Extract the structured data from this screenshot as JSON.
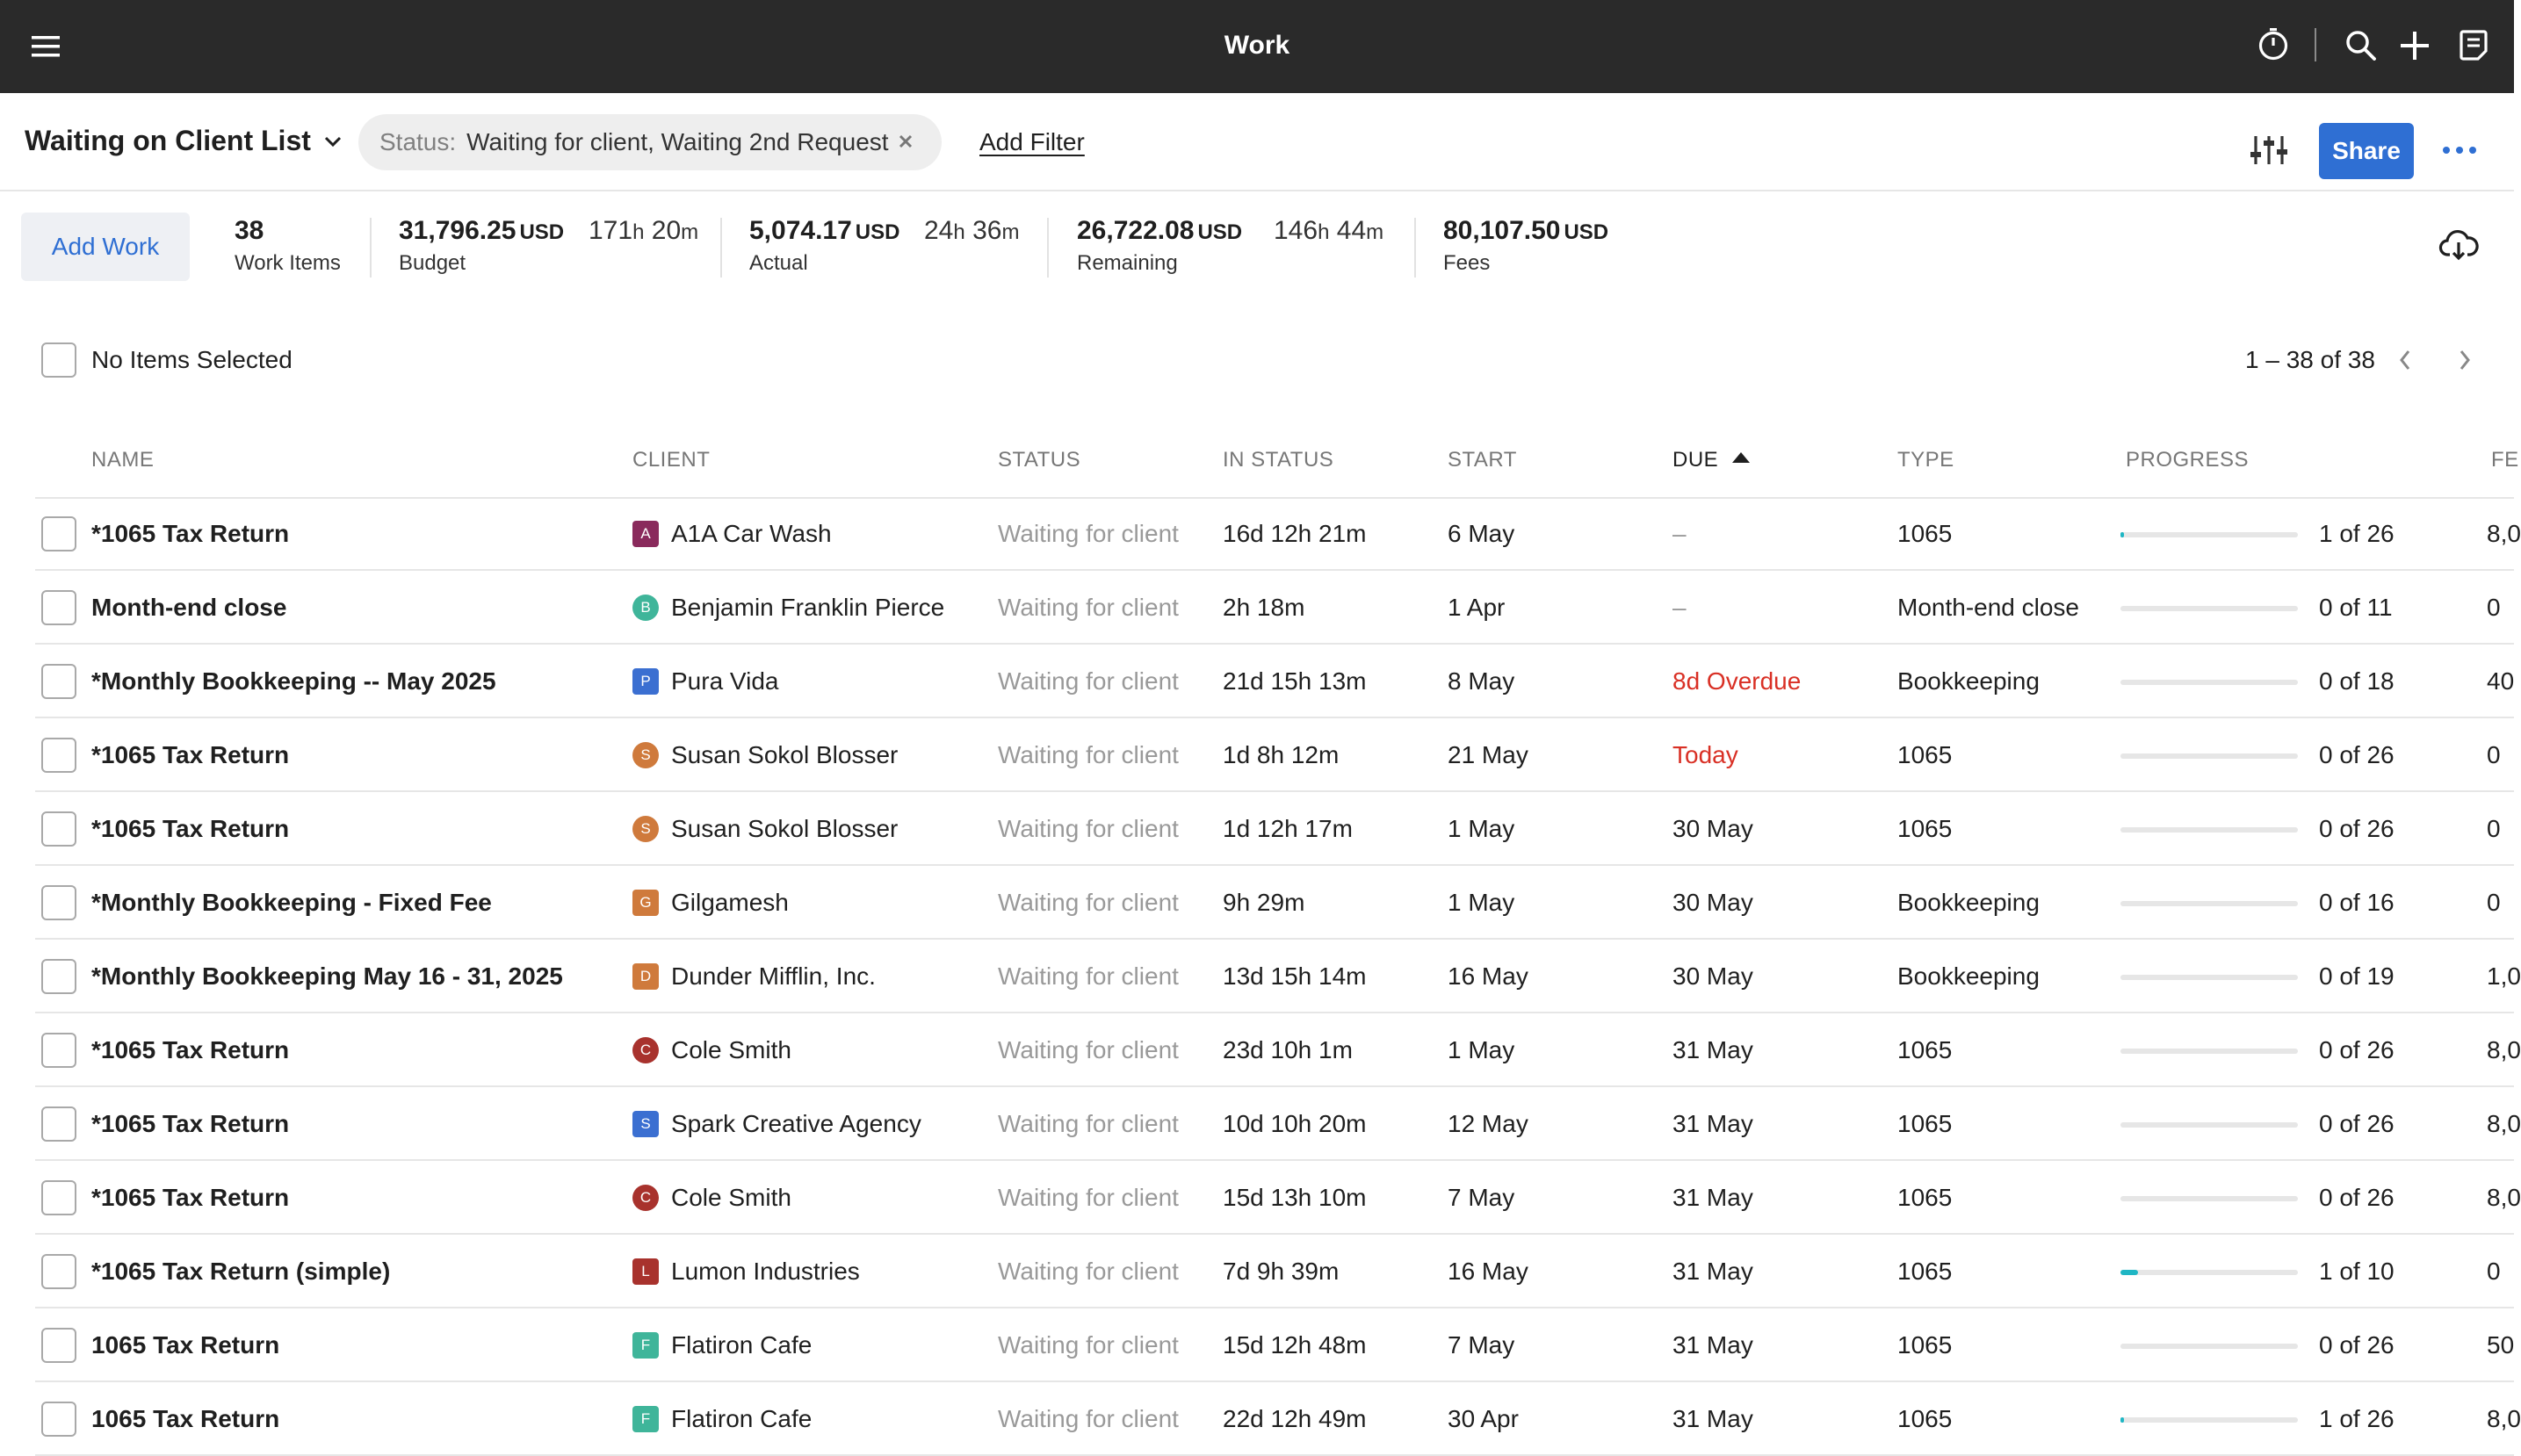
{
  "topbar": {
    "title": "Work",
    "icons": [
      "menu-icon",
      "timer-icon",
      "search-icon",
      "plus-icon",
      "notes-icon"
    ]
  },
  "list": {
    "title": "Waiting on Client List",
    "filter_label": "Status:",
    "filter_value": "Waiting for client, Waiting 2nd Request",
    "add_filter": "Add Filter",
    "share": "Share"
  },
  "summary": {
    "add_work": "Add Work",
    "work_items": "38",
    "work_items_label": "Work Items",
    "budget": "31,796.25",
    "budget_currency": "USD",
    "budget_label": "Budget",
    "budget_hours": "171",
    "budget_minutes": "20",
    "actual": "5,074.17",
    "actual_currency": "USD",
    "actual_label": "Actual",
    "actual_hours": "24",
    "actual_minutes": "36",
    "remaining": "26,722.08",
    "remaining_currency": "USD",
    "remaining_label": "Remaining",
    "remaining_hours": "146",
    "remaining_minutes": "44",
    "fees": "80,107.50",
    "fees_currency": "USD",
    "fees_label": "Fees",
    "hour_unit": "h",
    "minute_unit": "m"
  },
  "selection": {
    "label": "No Items Selected",
    "pager": "1 – 38 of 38"
  },
  "columns": {
    "name": "NAME",
    "client": "CLIENT",
    "status": "STATUS",
    "in_status": "IN STATUS",
    "start": "START",
    "due": "DUE",
    "type": "TYPE",
    "progress": "PROGRESS",
    "fees": "FE"
  },
  "colors": {
    "topbar": "#2a2a2a",
    "accent": "#2f6fd3",
    "progress": "#1fb6c4",
    "overdue": "#d93025"
  },
  "rows": [
    {
      "name": "*1065 Tax Return",
      "client_initial": "A",
      "client": "A1A Car Wash",
      "avatar_color": "#8a2a5c",
      "avatar_shape": "square",
      "status": "Waiting for client",
      "in_status": "16d 12h 21m",
      "start": "6 May",
      "due": "–",
      "due_style": "dash",
      "type": "1065",
      "progress": 0.02,
      "progress_text": "1 of 26",
      "fee": "8,0"
    },
    {
      "name": "Month-end close",
      "client_initial": "B",
      "client": "Benjamin Franklin Pierce",
      "avatar_color": "#3fb59a",
      "avatar_shape": "round",
      "status": "Waiting for client",
      "in_status": "2h 18m",
      "start": "1 Apr",
      "due": "–",
      "due_style": "dash",
      "type": "Month-end close",
      "progress": 0,
      "progress_text": "0 of 11",
      "fee": "0"
    },
    {
      "name": "*Monthly Bookkeeping -- May 2025",
      "client_initial": "P",
      "client": "Pura Vida",
      "avatar_color": "#3b6fd1",
      "avatar_shape": "square",
      "status": "Waiting for client",
      "in_status": "21d 15h 13m",
      "start": "8 May",
      "due": "8d Overdue",
      "due_style": "red",
      "type": "Bookkeeping",
      "progress": 0,
      "progress_text": "0 of 18",
      "fee": "40"
    },
    {
      "name": "*1065 Tax Return",
      "client_initial": "S",
      "client": "Susan Sokol Blosser",
      "avatar_color": "#cf7a3c",
      "avatar_shape": "round",
      "status": "Waiting for client",
      "in_status": "1d 8h 12m",
      "start": "21 May",
      "due": "Today",
      "due_style": "red",
      "type": "1065",
      "progress": 0,
      "progress_text": "0 of 26",
      "fee": "0"
    },
    {
      "name": "*1065 Tax Return",
      "client_initial": "S",
      "client": "Susan Sokol Blosser",
      "avatar_color": "#cf7a3c",
      "avatar_shape": "round",
      "status": "Waiting for client",
      "in_status": "1d 12h 17m",
      "start": "1 May",
      "due": "30 May",
      "due_style": "",
      "type": "1065",
      "progress": 0,
      "progress_text": "0 of 26",
      "fee": "0"
    },
    {
      "name": "*Monthly Bookkeeping - Fixed Fee",
      "client_initial": "G",
      "client": "Gilgamesh",
      "avatar_color": "#cf7a3c",
      "avatar_shape": "square",
      "status": "Waiting for client",
      "in_status": "9h 29m",
      "start": "1 May",
      "due": "30 May",
      "due_style": "",
      "type": "Bookkeeping",
      "progress": 0,
      "progress_text": "0 of 16",
      "fee": "0"
    },
    {
      "name": "*Monthly Bookkeeping May 16 - 31, 2025",
      "client_initial": "D",
      "client": "Dunder Mifflin, Inc.",
      "avatar_color": "#cf7a3c",
      "avatar_shape": "square",
      "status": "Waiting for client",
      "in_status": "13d 15h 14m",
      "start": "16 May",
      "due": "30 May",
      "due_style": "",
      "type": "Bookkeeping",
      "progress": 0,
      "progress_text": "0 of 19",
      "fee": "1,0"
    },
    {
      "name": "*1065 Tax Return",
      "client_initial": "C",
      "client": "Cole Smith",
      "avatar_color": "#a8322d",
      "avatar_shape": "round",
      "status": "Waiting for client",
      "in_status": "23d 10h 1m",
      "start": "1 May",
      "due": "31 May",
      "due_style": "",
      "type": "1065",
      "progress": 0,
      "progress_text": "0 of 26",
      "fee": "8,0"
    },
    {
      "name": "*1065 Tax Return",
      "client_initial": "S",
      "client": "Spark Creative Agency",
      "avatar_color": "#3b6fd1",
      "avatar_shape": "square",
      "status": "Waiting for client",
      "in_status": "10d 10h 20m",
      "start": "12 May",
      "due": "31 May",
      "due_style": "",
      "type": "1065",
      "progress": 0,
      "progress_text": "0 of 26",
      "fee": "8,0"
    },
    {
      "name": "*1065 Tax Return",
      "client_initial": "C",
      "client": "Cole Smith",
      "avatar_color": "#a8322d",
      "avatar_shape": "round",
      "status": "Waiting for client",
      "in_status": "15d 13h 10m",
      "start": "7 May",
      "due": "31 May",
      "due_style": "",
      "type": "1065",
      "progress": 0,
      "progress_text": "0 of 26",
      "fee": "8,0"
    },
    {
      "name": "*1065 Tax Return (simple)",
      "client_initial": "L",
      "client": "Lumon Industries",
      "avatar_color": "#a8322d",
      "avatar_shape": "square",
      "status": "Waiting for client",
      "in_status": "7d 9h 39m",
      "start": "16 May",
      "due": "31 May",
      "due_style": "",
      "type": "1065",
      "progress": 0.1,
      "progress_text": "1 of 10",
      "fee": "0"
    },
    {
      "name": "1065 Tax Return",
      "client_initial": "F",
      "client": "Flatiron Cafe",
      "avatar_color": "#3fb59a",
      "avatar_shape": "square",
      "status": "Waiting for client",
      "in_status": "15d 12h 48m",
      "start": "7 May",
      "due": "31 May",
      "due_style": "",
      "type": "1065",
      "progress": 0,
      "progress_text": "0 of 26",
      "fee": "50"
    },
    {
      "name": "1065 Tax Return",
      "client_initial": "F",
      "client": "Flatiron Cafe",
      "avatar_color": "#3fb59a",
      "avatar_shape": "square",
      "status": "Waiting for client",
      "in_status": "22d 12h 49m",
      "start": "30 Apr",
      "due": "31 May",
      "due_style": "",
      "type": "1065",
      "progress": 0.02,
      "progress_text": "1 of 26",
      "fee": "8,0"
    }
  ]
}
